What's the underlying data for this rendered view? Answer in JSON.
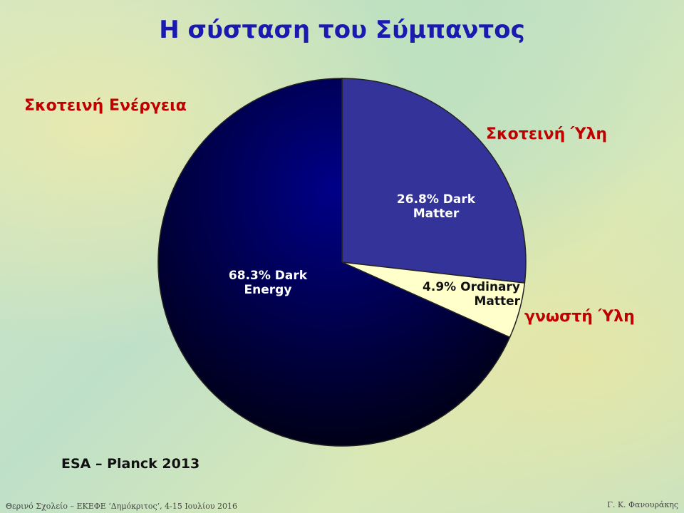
{
  "chart_data": {
    "type": "pie",
    "title": "Η σύσταση του Σύμπαντος",
    "categories": [
      "Dark Matter",
      "Ordinary Matter",
      "Dark Energy"
    ],
    "values": [
      26.8,
      4.9,
      68.3
    ],
    "value_labels": [
      "26.8% Dark Matter",
      "4.9% Ordinary Matter",
      "68.3% Dark Energy"
    ],
    "colors": [
      "#333399",
      "#ffffcc",
      "#000066"
    ],
    "annotations": [
      "Σκοτεινή Ύλη",
      "γνωστή Ύλη",
      "Σκοτεινή Ενέργεια"
    ],
    "source": "ESA – Planck 2013"
  },
  "footer": {
    "left": "Θερινό Σχολείο – ΕΚΕΦΕ ‘Δημόκριτος’, 4-15 Ιουλίου 2016",
    "right": "Γ. Κ. Φανουράκης"
  }
}
